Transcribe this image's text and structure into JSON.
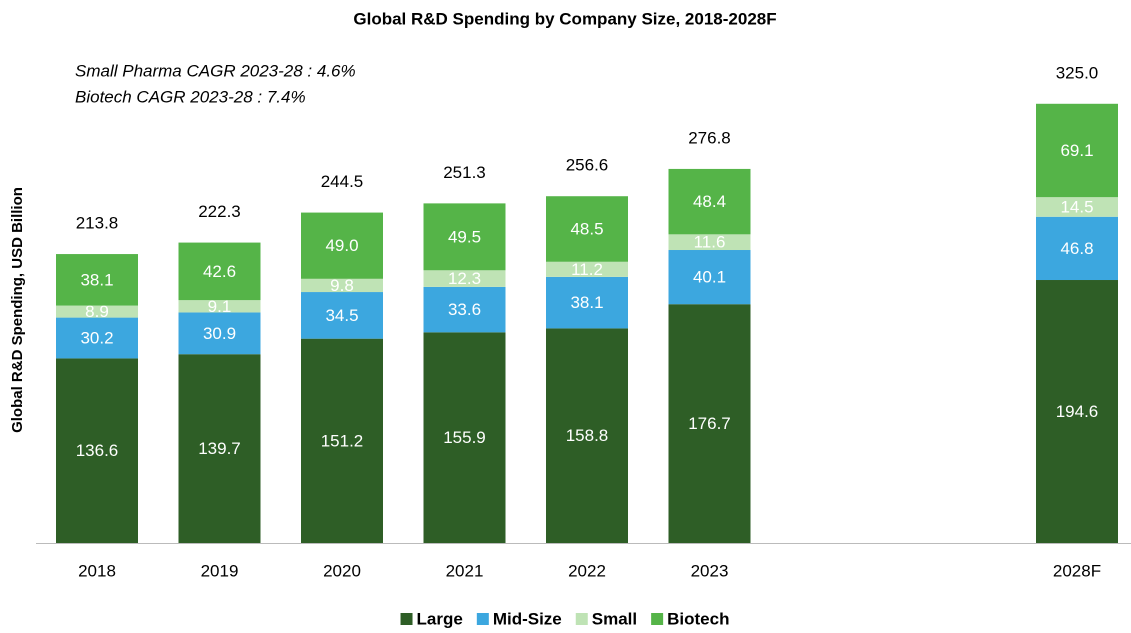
{
  "chart_data": {
    "type": "stacked_bar",
    "title": "Global R&D Spending by Company Size, 2018-2028F",
    "annotations": [
      "Small Pharma CAGR 2023-28 : 4.6%",
      "Biotech CAGR 2023-28 : 7.4%"
    ],
    "y_label": "Global R&D Spending, USD Billion",
    "categories": [
      "2018",
      "2019",
      "2020",
      "2021",
      "2022",
      "2023",
      null,
      null,
      "2028F"
    ],
    "series": [
      {
        "name": "Large",
        "color": "#2e5e26",
        "values": [
          136.6,
          139.7,
          151.2,
          155.9,
          158.8,
          176.7,
          null,
          null,
          194.6
        ]
      },
      {
        "name": "Mid-Size",
        "color": "#3ca7df",
        "values": [
          30.2,
          30.9,
          34.5,
          33.6,
          38.1,
          40.1,
          null,
          null,
          46.8
        ]
      },
      {
        "name": "Small",
        "color": "#bfe3b5",
        "values": [
          8.9,
          9.1,
          9.8,
          12.3,
          11.2,
          11.6,
          null,
          null,
          14.5
        ]
      },
      {
        "name": "Biotech",
        "color": "#55b448",
        "values": [
          38.1,
          42.6,
          49.0,
          49.5,
          48.5,
          48.4,
          null,
          null,
          69.1
        ]
      }
    ],
    "value_labels": [
      [
        "136.6",
        "139.7",
        "151.2",
        "155.9",
        "158.8",
        "176.7",
        null,
        null,
        "194.6"
      ],
      [
        "30.2",
        "30.9",
        "34.5",
        "33.6",
        "38.1",
        "40.1",
        null,
        null,
        "46.8"
      ],
      [
        "8.9",
        "9.1",
        "9.8",
        "12.3",
        "11.2",
        "11.6",
        null,
        null,
        "14.5"
      ],
      [
        "38.1",
        "42.6",
        "49.0",
        "49.5",
        "48.5",
        "48.4",
        null,
        null,
        "69.1"
      ]
    ],
    "totals": [
      213.8,
      222.3,
      244.5,
      251.3,
      256.6,
      276.8,
      null,
      null,
      325.0
    ],
    "total_labels": [
      "213.8",
      "222.3",
      "244.5",
      "251.3",
      "256.6",
      "276.8",
      null,
      null,
      "325.0"
    ],
    "ylim": [
      0,
      350
    ],
    "legend": "bottom"
  }
}
